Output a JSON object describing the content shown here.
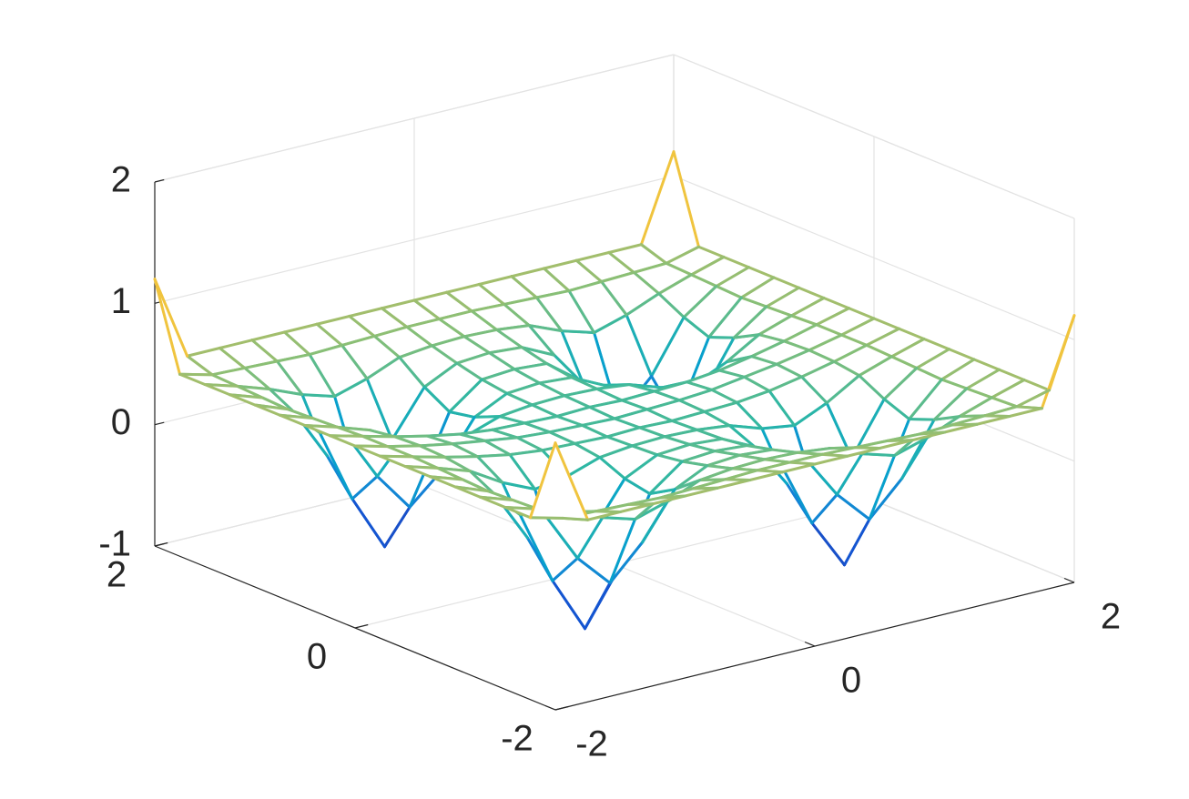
{
  "chart_data": {
    "type": "mesh",
    "x": [
      -2,
      -1.75,
      -1.5,
      -1.25,
      -1,
      -0.75,
      -0.5,
      -0.25,
      0,
      0.25,
      0.5,
      0.75,
      1,
      1.25,
      1.5,
      1.75,
      2
    ],
    "y": [
      -2,
      -1.75,
      -1.5,
      -1.25,
      -1,
      -0.75,
      -0.5,
      -0.25,
      0,
      0.25,
      0.5,
      0.75,
      1,
      1.25,
      1.5,
      1.75,
      2
    ],
    "z": [
      [
        1.2,
        0.5,
        0.5,
        0.5,
        0.5,
        0.5,
        0.5,
        0.5,
        0.5,
        0.5,
        0.5,
        0.5,
        0.5,
        0.5,
        0.5,
        0.5,
        1.2
      ],
      [
        0.5,
        0.43,
        0.42,
        0.41,
        0.4,
        0.41,
        0.42,
        0.43,
        0.43,
        0.43,
        0.42,
        0.41,
        0.4,
        0.41,
        0.42,
        0.43,
        0.5
      ],
      [
        0.5,
        0.42,
        0.33,
        0.22,
        0.14,
        0.22,
        0.33,
        0.36,
        0.37,
        0.36,
        0.33,
        0.22,
        0.14,
        0.22,
        0.33,
        0.42,
        0.5
      ],
      [
        0.5,
        0.41,
        0.22,
        -0.2,
        -0.47,
        -0.2,
        0.17,
        0.3,
        0.32,
        0.3,
        0.17,
        -0.2,
        -0.47,
        -0.2,
        0.22,
        0.41,
        0.5
      ],
      [
        0.5,
        0.4,
        0.14,
        -0.47,
        -0.93,
        -0.52,
        0.05,
        0.25,
        0.27,
        0.25,
        0.05,
        -0.52,
        -0.93,
        -0.47,
        0.14,
        0.4,
        0.5
      ],
      [
        0.5,
        0.41,
        0.22,
        -0.2,
        -0.52,
        -0.28,
        0.09,
        0.22,
        0.24,
        0.22,
        0.09,
        -0.28,
        -0.52,
        -0.2,
        0.22,
        0.41,
        0.5
      ],
      [
        0.5,
        0.42,
        0.33,
        0.17,
        0.05,
        0.09,
        0.18,
        0.21,
        0.22,
        0.21,
        0.18,
        0.09,
        0.05,
        0.17,
        0.33,
        0.42,
        0.5
      ],
      [
        0.5,
        0.43,
        0.36,
        0.3,
        0.25,
        0.22,
        0.21,
        0.2,
        0.21,
        0.2,
        0.21,
        0.22,
        0.25,
        0.3,
        0.36,
        0.43,
        0.5
      ],
      [
        0.5,
        0.43,
        0.37,
        0.32,
        0.28,
        0.24,
        0.22,
        0.21,
        0.2,
        0.21,
        0.22,
        0.24,
        0.28,
        0.32,
        0.37,
        0.43,
        0.5
      ],
      [
        0.5,
        0.43,
        0.36,
        0.3,
        0.25,
        0.22,
        0.21,
        0.2,
        0.21,
        0.2,
        0.21,
        0.22,
        0.25,
        0.3,
        0.36,
        0.43,
        0.5
      ],
      [
        0.5,
        0.42,
        0.33,
        0.17,
        0.05,
        0.09,
        0.18,
        0.21,
        0.22,
        0.21,
        0.18,
        0.09,
        0.05,
        0.17,
        0.33,
        0.42,
        0.5
      ],
      [
        0.5,
        0.41,
        0.22,
        -0.2,
        -0.52,
        -0.28,
        0.09,
        0.22,
        0.24,
        0.22,
        0.09,
        -0.28,
        -0.52,
        -0.2,
        0.22,
        0.41,
        0.5
      ],
      [
        0.5,
        0.4,
        0.14,
        -0.47,
        -0.93,
        -0.52,
        0.05,
        0.25,
        0.27,
        0.25,
        0.05,
        -0.52,
        -0.93,
        -0.47,
        0.14,
        0.4,
        0.5
      ],
      [
        0.5,
        0.41,
        0.22,
        -0.2,
        -0.47,
        -0.2,
        0.17,
        0.3,
        0.32,
        0.3,
        0.17,
        -0.2,
        -0.47,
        -0.2,
        0.22,
        0.41,
        0.5
      ],
      [
        0.5,
        0.42,
        0.33,
        0.22,
        0.14,
        0.22,
        0.33,
        0.36,
        0.37,
        0.36,
        0.33,
        0.22,
        0.14,
        0.22,
        0.33,
        0.42,
        0.5
      ],
      [
        0.5,
        0.43,
        0.42,
        0.41,
        0.4,
        0.41,
        0.42,
        0.43,
        0.43,
        0.43,
        0.42,
        0.41,
        0.4,
        0.41,
        0.42,
        0.43,
        0.5
      ],
      [
        1.2,
        0.5,
        0.5,
        0.5,
        0.5,
        0.5,
        0.5,
        0.5,
        0.5,
        0.5,
        0.5,
        0.5,
        0.5,
        0.5,
        0.5,
        0.5,
        1.2
      ]
    ],
    "xlim": [
      -2,
      2
    ],
    "ylim": [
      -2,
      2
    ],
    "zlim": [
      -1,
      2
    ],
    "xticks": [
      -2,
      0,
      2
    ],
    "yticks": [
      -2,
      0,
      2
    ],
    "zticks": [
      -1,
      0,
      1,
      2
    ],
    "grid": true,
    "colormap": [
      "#352a87",
      "#0f5cdd",
      "#1481d6",
      "#06a4ca",
      "#2eb7a4",
      "#87bf77",
      "#d1bb59",
      "#fec832",
      "#f9fb0e"
    ]
  }
}
